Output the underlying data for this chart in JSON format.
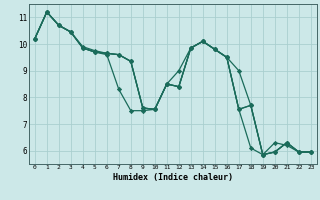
{
  "xlabel": "Humidex (Indice chaleur)",
  "bg_color": "#cce8e8",
  "grid_color": "#aacfcf",
  "line_color": "#1a6b5a",
  "marker": "D",
  "markersize": 2.2,
  "linewidth": 0.9,
  "xlim": [
    -0.5,
    23.5
  ],
  "ylim": [
    5.5,
    11.5
  ],
  "yticks": [
    6,
    7,
    8,
    9,
    10,
    11
  ],
  "xticks": [
    0,
    1,
    2,
    3,
    4,
    5,
    6,
    7,
    8,
    9,
    10,
    11,
    12,
    13,
    14,
    15,
    16,
    17,
    18,
    19,
    20,
    21,
    22,
    23
  ],
  "series": [
    [
      10.2,
      11.2,
      10.7,
      10.45,
      9.85,
      9.7,
      9.6,
      8.3,
      7.5,
      7.5,
      7.55,
      8.5,
      9.0,
      9.85,
      10.1,
      9.8,
      9.5,
      9.0,
      7.7,
      5.85,
      6.3,
      6.2,
      5.95,
      5.95
    ],
    [
      10.2,
      11.2,
      10.7,
      10.45,
      9.85,
      9.7,
      9.65,
      9.6,
      9.35,
      7.6,
      7.55,
      8.5,
      8.4,
      9.85,
      10.1,
      9.8,
      9.5,
      7.55,
      6.1,
      5.85,
      5.95,
      6.3,
      5.95,
      5.95
    ],
    [
      10.2,
      11.2,
      10.7,
      10.45,
      9.85,
      9.7,
      9.65,
      9.6,
      9.35,
      7.6,
      7.55,
      8.5,
      8.4,
      9.85,
      10.1,
      9.8,
      9.5,
      7.55,
      7.7,
      5.85,
      5.95,
      6.3,
      5.95,
      5.95
    ],
    [
      10.2,
      11.2,
      10.7,
      10.45,
      9.9,
      9.75,
      9.65,
      9.6,
      9.35,
      7.6,
      7.55,
      8.5,
      8.4,
      9.85,
      10.1,
      9.8,
      9.5,
      7.55,
      7.7,
      5.85,
      5.95,
      6.3,
      5.95,
      5.95
    ]
  ]
}
